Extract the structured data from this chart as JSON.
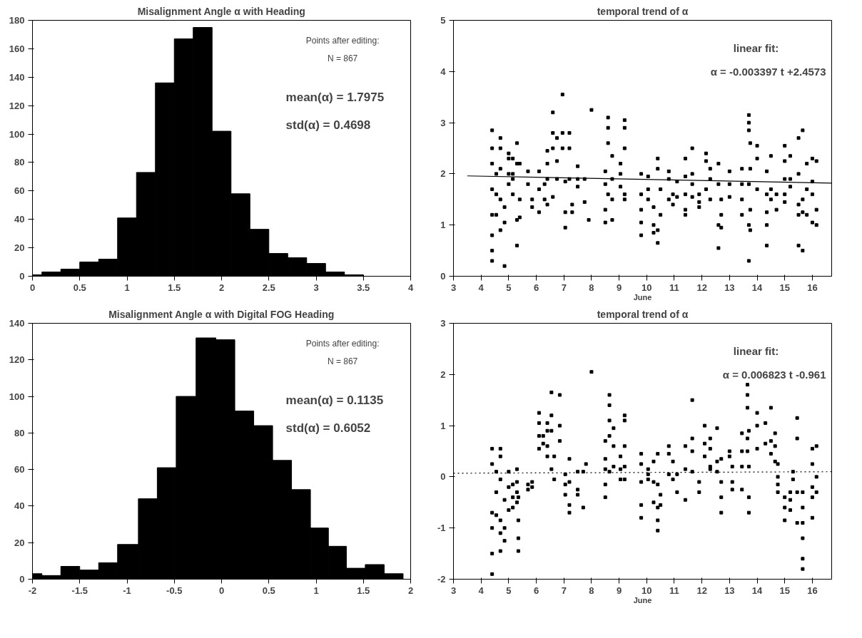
{
  "chart_data": [
    {
      "type": "histogram",
      "title": "Misalignment Angle α with Heading",
      "bins": [
        0,
        0.1,
        0.3,
        0.5,
        0.7,
        0.9,
        1.1,
        1.3,
        1.5,
        1.7,
        1.9,
        2.1,
        2.3,
        2.5,
        2.7,
        2.9,
        3.1,
        3.3,
        3.5
      ],
      "values": [
        1,
        3,
        5,
        10,
        12,
        41,
        73,
        136,
        167,
        175,
        102,
        58,
        33,
        16,
        13,
        9,
        3,
        1
      ],
      "color": "#000000",
      "xlim": [
        0,
        4
      ],
      "ylim": [
        0,
        180
      ],
      "xticks": [
        0,
        0.5,
        1,
        1.5,
        2,
        2.5,
        3,
        3.5,
        4
      ],
      "yticks": [
        0,
        20,
        40,
        60,
        80,
        100,
        120,
        140,
        160,
        180
      ],
      "grid": false,
      "annotations": [
        "Points after editing:",
        "N = 867",
        "mean(α) =  1.7975",
        "std(α) =  0.4698"
      ]
    },
    {
      "type": "scatter",
      "title": "temporal trend of α",
      "xlabel": "June",
      "xlim": [
        3,
        16.7
      ],
      "ylim": [
        0,
        5
      ],
      "xticks": [
        3,
        4,
        5,
        6,
        7,
        8,
        9,
        10,
        11,
        12,
        13,
        14,
        15,
        16
      ],
      "yticks": [
        0,
        1,
        2,
        3,
        4,
        5
      ],
      "grid": false,
      "annotations": [
        "linear fit:",
        "α = -0.003397 t +2.4573"
      ],
      "series": [
        {
          "type": "scatter",
          "color": "#000000",
          "marker": "square",
          "x": [
            4.4,
            4.4,
            4.4,
            4.4,
            4.4,
            4.4,
            4.4,
            4.4,
            4.55,
            4.55,
            4.55,
            4.7,
            4.7,
            4.7,
            4.7,
            4.7,
            4.85,
            4.85,
            4.85,
            5.0,
            5.0,
            5.0,
            5.0,
            5.15,
            5.15,
            5.15,
            5.15,
            5.3,
            5.3,
            5.3,
            5.3,
            5.4,
            5.4,
            5.4,
            5.7,
            5.7,
            5.85,
            5.85,
            6.1,
            6.1,
            6.1,
            6.3,
            6.3,
            6.4,
            6.4,
            6.4,
            6.4,
            6.6,
            6.6,
            6.6,
            6.6,
            6.75,
            6.75,
            6.75,
            6.95,
            6.95,
            6.95,
            7.05,
            7.05,
            7.05,
            7.2,
            7.2,
            7.2,
            7.3,
            7.3,
            7.5,
            7.5,
            7.5,
            7.75,
            7.75,
            7.9,
            8.0,
            8.5,
            8.5,
            8.5,
            8.5,
            8.6,
            8.6,
            8.6,
            8.6,
            8.75,
            8.75,
            8.75,
            8.75,
            9.05,
            9.05,
            9.05,
            9.2,
            9.2,
            9.2,
            9.2,
            9.2,
            9.8,
            9.8,
            9.8,
            9.8,
            9.8,
            10.05,
            10.05,
            10.05,
            10.25,
            10.25,
            10.25,
            10.4,
            10.4,
            10.4,
            10.4,
            10.5,
            10.5,
            10.8,
            10.8,
            10.8,
            10.95,
            10.95,
            11.1,
            11.1,
            11.4,
            11.4,
            11.4,
            11.4,
            11.4,
            11.65,
            11.65,
            11.65,
            11.65,
            11.9,
            11.9,
            11.9,
            12.15,
            12.15,
            12.15,
            12.3,
            12.3,
            12.3,
            12.6,
            12.6,
            12.6,
            12.6,
            12.7,
            12.7,
            12.7,
            13.0,
            13.0,
            13.0,
            13.45,
            13.45,
            13.45,
            13.45,
            13.7,
            13.7,
            13.7,
            13.7,
            13.7,
            13.7,
            13.75,
            13.75,
            13.75,
            13.75,
            14.0,
            14.0,
            14.0,
            14.35,
            14.35,
            14.35,
            14.35,
            14.35,
            14.5,
            14.5,
            14.5,
            14.7,
            14.7,
            15.0,
            15.0,
            15.0,
            15.0,
            15.0,
            15.2,
            15.2,
            15.2,
            15.5,
            15.5,
            15.5,
            15.5,
            15.5,
            15.65,
            15.65,
            15.65,
            15.65,
            15.8,
            15.8,
            15.8,
            16.0,
            16.0,
            16.0,
            16.0,
            16.15,
            16.15,
            16.15
          ],
          "values": [
            2.85,
            2.5,
            2.2,
            1.7,
            1.2,
            0.8,
            0.5,
            0.3,
            1.6,
            1.2,
            2.0,
            2.7,
            2.5,
            2.1,
            1.5,
            0.9,
            1.35,
            1.05,
            0.2,
            2.4,
            2.3,
            1.8,
            2.0,
            2.3,
            2.0,
            1.9,
            1.6,
            2.6,
            2.2,
            1.1,
            0.6,
            2.2,
            1.5,
            1.15,
            2.05,
            1.8,
            1.5,
            1.35,
            2.05,
            1.7,
            1.25,
            1.5,
            1.8,
            2.45,
            2.2,
            1.9,
            1.4,
            3.2,
            2.8,
            2.5,
            1.55,
            2.7,
            2.25,
            1.9,
            3.55,
            2.8,
            2.5,
            1.25,
            0.95,
            1.85,
            2.8,
            2.5,
            1.9,
            1.4,
            1.25,
            2.15,
            1.75,
            1.9,
            1.9,
            1.45,
            1.1,
            3.25,
            2.05,
            1.8,
            1.3,
            1.05,
            3.1,
            2.9,
            2.6,
            1.6,
            2.35,
            1.9,
            1.5,
            1.1,
            2.2,
            2.0,
            1.75,
            3.05,
            2.9,
            2.5,
            1.6,
            1.5,
            2.0,
            1.6,
            1.3,
            1.05,
            0.8,
            1.95,
            1.7,
            1.5,
            1.35,
            1.0,
            0.85,
            2.3,
            2.1,
            0.9,
            0.65,
            1.7,
            1.2,
            2.05,
            1.9,
            1.5,
            1.6,
            1.4,
            1.85,
            1.55,
            2.3,
            1.95,
            1.6,
            1.3,
            1.2,
            2.5,
            2.0,
            1.8,
            1.55,
            1.6,
            1.45,
            1.35,
            2.4,
            2.25,
            1.7,
            2.1,
            1.9,
            1.5,
            2.2,
            1.8,
            1.0,
            0.55,
            1.5,
            1.2,
            0.95,
            2.05,
            1.8,
            1.55,
            2.1,
            1.8,
            1.5,
            1.2,
            3.15,
            3.0,
            2.85,
            1.8,
            1.0,
            0.3,
            2.6,
            2.1,
            1.3,
            0.9,
            2.55,
            2.3,
            1.7,
            2.05,
            1.6,
            1.25,
            1.0,
            0.6,
            2.35,
            1.7,
            1.5,
            1.6,
            1.3,
            2.55,
            2.25,
            1.9,
            1.6,
            1.45,
            2.35,
            1.9,
            1.75,
            2.7,
            2.0,
            1.4,
            1.2,
            0.6,
            2.85,
            1.5,
            1.25,
            0.5,
            2.2,
            1.7,
            1.2,
            2.3,
            1.85,
            1.6,
            1.05,
            2.25,
            1.3,
            1.0
          ]
        },
        {
          "type": "line",
          "color": "#000000",
          "line_style": "solid",
          "x": [
            3.5,
            16.7
          ],
          "values": [
            1.96,
            1.82
          ]
        }
      ]
    },
    {
      "type": "histogram",
      "title": "Misalignment Angle α with Digital FOG Heading",
      "bins": [
        -2,
        -1.9,
        -1.7,
        -1.5,
        -1.3,
        -1.1,
        -0.88,
        -0.68,
        -0.48,
        -0.27,
        -0.06,
        0.14,
        0.34,
        0.54,
        0.74,
        0.94,
        1.13,
        1.32,
        1.52,
        1.72,
        1.92
      ],
      "values": [
        3,
        2,
        7,
        5,
        9,
        19,
        44,
        61,
        100,
        132,
        131,
        92,
        84,
        65,
        49,
        28,
        18,
        6,
        8,
        3
      ],
      "color": "#000000",
      "xlim": [
        -2,
        2
      ],
      "ylim": [
        0,
        140
      ],
      "xticks": [
        -2,
        -1.5,
        -1,
        -0.5,
        0,
        0.5,
        1,
        1.5,
        2
      ],
      "yticks": [
        0,
        20,
        40,
        60,
        80,
        100,
        120,
        140
      ],
      "grid": false,
      "annotations": [
        "Points after editing:",
        "N = 867",
        "mean(α) =  0.1135",
        "std(α) =  0.6052"
      ]
    },
    {
      "type": "scatter",
      "title": "temporal trend of α",
      "xlabel": "June",
      "xlim": [
        3,
        16.7
      ],
      "ylim": [
        -2,
        3
      ],
      "xticks": [
        3,
        4,
        5,
        6,
        7,
        8,
        9,
        10,
        11,
        12,
        13,
        14,
        15,
        16
      ],
      "yticks": [
        -2,
        -1,
        0,
        1,
        2,
        3
      ],
      "grid": false,
      "annotations": [
        "linear fit:",
        "α = 0.006823 t -0.961"
      ],
      "series": [
        {
          "type": "scatter",
          "color": "#000000",
          "marker": "square",
          "x": [
            4.4,
            4.4,
            4.4,
            4.4,
            4.4,
            4.4,
            4.55,
            4.55,
            4.55,
            4.7,
            4.7,
            4.7,
            4.7,
            4.7,
            4.7,
            4.85,
            4.85,
            4.85,
            5.0,
            5.0,
            5.0,
            5.15,
            5.15,
            5.15,
            5.3,
            5.3,
            5.3,
            5.3,
            5.35,
            5.35,
            5.35,
            5.35,
            5.7,
            5.7,
            5.85,
            5.85,
            6.1,
            6.1,
            6.1,
            6.1,
            6.25,
            6.25,
            6.4,
            6.4,
            6.4,
            6.4,
            6.55,
            6.55,
            6.55,
            6.55,
            6.65,
            6.65,
            6.85,
            6.85,
            6.85,
            7.05,
            7.05,
            7.05,
            7.2,
            7.2,
            7.2,
            7.2,
            7.5,
            7.5,
            7.5,
            7.7,
            7.7,
            7.8,
            8.0,
            8.5,
            8.5,
            8.5,
            8.5,
            8.5,
            8.65,
            8.65,
            8.65,
            8.65,
            8.65,
            8.8,
            8.8,
            8.8,
            9.05,
            9.05,
            9.05,
            9.2,
            9.2,
            9.2,
            9.2,
            9.2,
            9.8,
            9.8,
            9.8,
            9.8,
            9.8,
            10.05,
            10.05,
            10.05,
            10.25,
            10.25,
            10.25,
            10.4,
            10.4,
            10.4,
            10.4,
            10.4,
            10.5,
            10.5,
            10.8,
            10.8,
            10.8,
            10.95,
            10.95,
            11.1,
            11.1,
            11.4,
            11.4,
            11.4,
            11.65,
            11.65,
            11.65,
            11.65,
            11.9,
            11.9,
            12.1,
            12.1,
            12.1,
            12.3,
            12.3,
            12.3,
            12.3,
            12.55,
            12.55,
            12.55,
            12.7,
            12.7,
            12.7,
            12.7,
            13.0,
            13.0,
            13.1,
            13.1,
            13.1,
            13.45,
            13.45,
            13.45,
            13.45,
            13.65,
            13.65,
            13.65,
            13.65,
            13.65,
            13.7,
            13.7,
            13.7,
            13.7,
            14.0,
            14.0,
            14.0,
            14.3,
            14.3,
            14.5,
            14.5,
            14.5,
            14.65,
            14.65,
            14.65,
            14.75,
            14.75,
            14.75,
            14.75,
            15.0,
            15.0,
            15.0,
            15.2,
            15.2,
            15.2,
            15.3,
            15.3,
            15.45,
            15.45,
            15.45,
            15.45,
            15.65,
            15.65,
            15.65,
            15.65,
            15.65,
            15.65,
            16.0,
            16.0,
            16.0,
            16.0,
            16.0,
            16.15,
            16.15,
            16.15
          ],
          "values": [
            0.55,
            0.25,
            -0.7,
            -1.0,
            -1.5,
            -1.9,
            0.1,
            -0.3,
            -0.75,
            0.55,
            0.4,
            -0.05,
            -0.85,
            -1.1,
            -1.45,
            -0.45,
            -1.0,
            -1.25,
            0.1,
            -0.2,
            -0.65,
            -0.15,
            -0.4,
            -0.6,
            0.15,
            -0.1,
            -0.3,
            -0.5,
            -0.4,
            -0.85,
            -1.2,
            -1.45,
            -0.15,
            -0.25,
            -0.1,
            -0.2,
            1.25,
            1.05,
            0.8,
            0.55,
            0.8,
            0.65,
            1.05,
            0.9,
            0.6,
            0.4,
            1.65,
            1.2,
            0.9,
            0.15,
            0.4,
            -0.05,
            1.6,
            1.0,
            0.7,
            -0.15,
            -0.35,
            0.05,
            0.35,
            -0.1,
            -0.55,
            -0.7,
            -0.25,
            -0.35,
            0.1,
            -0.6,
            0.1,
            0.25,
            2.05,
            0.7,
            0.35,
            0.15,
            -0.15,
            -0.4,
            1.6,
            1.4,
            1.1,
            0.8,
            0.1,
            0.95,
            0.6,
            0.2,
            0.4,
            0.15,
            -0.05,
            1.2,
            1.1,
            0.6,
            0.2,
            -0.05,
            0.45,
            0.25,
            -0.1,
            -0.55,
            -0.8,
            0.15,
            0.05,
            -0.05,
            0.3,
            -0.1,
            -0.5,
            0.45,
            -0.15,
            -0.6,
            -0.85,
            -1.05,
            -0.35,
            -0.55,
            0.6,
            0.45,
            0.05,
            0.3,
            -0.05,
            0.05,
            -0.3,
            0.6,
            0.15,
            -0.45,
            1.5,
            0.75,
            0.5,
            0.1,
            -0.1,
            -0.3,
            1.0,
            0.65,
            0.4,
            0.75,
            0.55,
            0.2,
            0.15,
            0.95,
            0.3,
            0.1,
            0.35,
            -0.1,
            -0.4,
            -0.7,
            0.5,
            0.4,
            0.2,
            -0.1,
            -0.25,
            0.85,
            0.5,
            0.2,
            -0.25,
            1.8,
            1.6,
            1.35,
            0.75,
            0.5,
            0.9,
            0.2,
            -0.4,
            -0.7,
            1.25,
            1.0,
            0.55,
            1.05,
            0.65,
            1.35,
            0.7,
            0.45,
            0.85,
            0.6,
            0.3,
            0.25,
            0.0,
            -0.15,
            -0.3,
            -0.4,
            -0.6,
            -0.85,
            -0.3,
            -0.45,
            -0.65,
            0.1,
            -0.05,
            1.15,
            0.75,
            -0.3,
            -0.9,
            -0.3,
            -0.6,
            -0.9,
            -1.2,
            -1.6,
            -1.8,
            0.55,
            0.25,
            -0.2,
            -0.4,
            -0.8,
            0.6,
            0.0,
            -0.3
          ]
        },
        {
          "type": "line",
          "color": "#000000",
          "line_style": "dotted",
          "x": [
            3,
            16.7
          ],
          "values": [
            0.07,
            0.1
          ]
        }
      ]
    }
  ]
}
